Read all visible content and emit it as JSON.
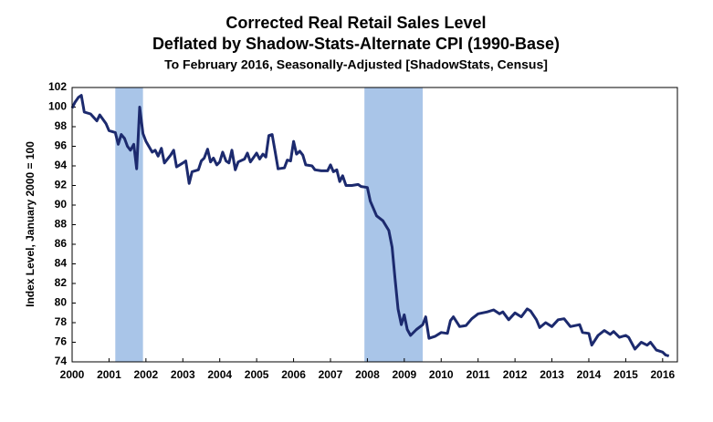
{
  "chart_data": {
    "type": "line",
    "title": "Corrected Real Retail Sales Level",
    "subtitle": "Deflated by Shadow-Stats-Alternate CPI (1990-Base)",
    "subtitle2": "To February 2016, Seasonally-Adjusted [ShadowStats, Census]",
    "y_label": "Index Level, January 2000 = 100",
    "xlim": [
      2000,
      2016.4
    ],
    "ylim": [
      74,
      102
    ],
    "xticks": [
      2000,
      2001,
      2002,
      2003,
      2004,
      2005,
      2006,
      2007,
      2008,
      2009,
      2010,
      2011,
      2012,
      2013,
      2014,
      2015,
      2016
    ],
    "yticks": [
      74,
      76,
      78,
      80,
      82,
      84,
      86,
      88,
      90,
      92,
      94,
      96,
      98,
      100,
      102
    ],
    "grid": false,
    "shaded_regions": [
      [
        2001.17,
        2001.92
      ],
      [
        2007.92,
        2009.5
      ]
    ],
    "shade_color": "#a9c5e8",
    "series": [
      {
        "color": "#1c2a6e",
        "x": [
          2000.0,
          2000.08,
          2000.17,
          2000.25,
          2000.33,
          2000.5,
          2000.67,
          2000.75,
          2000.92,
          2001.0,
          2001.17,
          2001.25,
          2001.33,
          2001.42,
          2001.5,
          2001.58,
          2001.67,
          2001.75,
          2001.83,
          2001.92,
          2002.0,
          2002.17,
          2002.25,
          2002.33,
          2002.42,
          2002.5,
          2002.67,
          2002.75,
          2002.83,
          2003.0,
          2003.08,
          2003.17,
          2003.25,
          2003.42,
          2003.5,
          2003.58,
          2003.67,
          2003.75,
          2003.83,
          2003.92,
          2004.0,
          2004.08,
          2004.17,
          2004.25,
          2004.33,
          2004.42,
          2004.5,
          2004.67,
          2004.75,
          2004.83,
          2005.0,
          2005.08,
          2005.17,
          2005.25,
          2005.33,
          2005.42,
          2005.5,
          2005.58,
          2005.75,
          2005.83,
          2005.92,
          2006.0,
          2006.08,
          2006.17,
          2006.25,
          2006.33,
          2006.5,
          2006.58,
          2006.75,
          2006.92,
          2007.0,
          2007.08,
          2007.17,
          2007.25,
          2007.33,
          2007.42,
          2007.58,
          2007.75,
          2007.83,
          2008.0,
          2008.08,
          2008.25,
          2008.42,
          2008.58,
          2008.67,
          2008.75,
          2008.83,
          2008.92,
          2009.0,
          2009.08,
          2009.17,
          2009.33,
          2009.5,
          2009.58,
          2009.67,
          2009.83,
          2010.0,
          2010.17,
          2010.25,
          2010.33,
          2010.5,
          2010.67,
          2010.83,
          2011.0,
          2011.25,
          2011.42,
          2011.58,
          2011.67,
          2011.83,
          2012.0,
          2012.17,
          2012.33,
          2012.42,
          2012.58,
          2012.67,
          2012.83,
          2013.0,
          2013.17,
          2013.33,
          2013.5,
          2013.75,
          2013.83,
          2014.0,
          2014.08,
          2014.25,
          2014.42,
          2014.58,
          2014.67,
          2014.83,
          2015.0,
          2015.08,
          2015.25,
          2015.42,
          2015.58,
          2015.67,
          2015.83,
          2016.0,
          2016.08,
          2016.17
        ],
        "values": [
          99.9,
          100.5,
          101.0,
          101.2,
          99.5,
          99.3,
          98.6,
          99.2,
          98.3,
          97.6,
          97.4,
          96.2,
          97.2,
          96.8,
          96.0,
          95.6,
          96.2,
          93.7,
          100.0,
          97.3,
          96.5,
          95.4,
          95.6,
          95.0,
          95.8,
          94.3,
          95.1,
          95.6,
          93.9,
          94.3,
          94.5,
          92.2,
          93.4,
          93.6,
          94.5,
          94.8,
          95.7,
          94.4,
          94.8,
          94.1,
          94.4,
          95.4,
          94.5,
          94.3,
          95.6,
          93.6,
          94.4,
          94.7,
          95.3,
          94.4,
          95.3,
          94.7,
          95.2,
          94.9,
          97.1,
          97.2,
          95.5,
          93.7,
          93.8,
          94.6,
          94.5,
          96.5,
          95.2,
          95.5,
          95.1,
          94.1,
          94.0,
          93.6,
          93.5,
          93.5,
          94.1,
          93.4,
          93.6,
          92.4,
          93.0,
          92.0,
          92.0,
          92.1,
          91.9,
          91.8,
          90.4,
          88.9,
          88.4,
          87.4,
          85.7,
          82.5,
          79.4,
          77.8,
          78.8,
          77.3,
          76.7,
          77.3,
          77.8,
          78.6,
          76.4,
          76.6,
          77.0,
          76.9,
          78.2,
          78.6,
          77.6,
          77.7,
          78.4,
          78.9,
          79.1,
          79.3,
          78.9,
          79.1,
          78.3,
          79.0,
          78.6,
          79.4,
          79.2,
          78.3,
          77.5,
          78.0,
          77.6,
          78.3,
          78.4,
          77.6,
          77.8,
          77.0,
          76.9,
          75.7,
          76.7,
          77.2,
          76.8,
          77.1,
          76.5,
          76.7,
          76.5,
          75.3,
          76.0,
          75.7,
          76.0,
          75.2,
          75.0,
          74.7,
          74.6
        ]
      }
    ]
  }
}
